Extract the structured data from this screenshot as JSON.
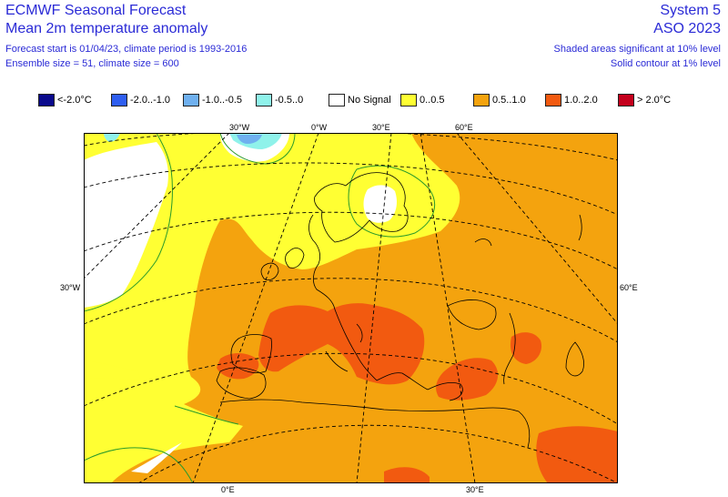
{
  "header": {
    "title_left": "ECMWF Seasonal Forecast",
    "subtitle_left": "Mean 2m temperature anomaly",
    "info1_left": "Forecast start is 01/04/23, climate period is 1993-2016",
    "info2_left": "Ensemble size = 51, climate size = 600",
    "title_right": "System 5",
    "subtitle_right": "ASO 2023",
    "info1_right": "Shaded areas significant at 10% level",
    "info2_right": "Solid contour at 1% level"
  },
  "legend": [
    {
      "label": "<-2.0°C",
      "color": "#0a0a8c"
    },
    {
      "label": "-2.0..-1.0",
      "color": "#2e5ef0"
    },
    {
      "label": "-1.0..-0.5",
      "color": "#6fb0ef"
    },
    {
      "label": "-0.5..0",
      "color": "#8ff2ea"
    },
    {
      "label": "No Signal",
      "color": "#ffffff"
    },
    {
      "label": "0..0.5",
      "color": "#ffff33"
    },
    {
      "label": "0.5..1.0",
      "color": "#f4a30e"
    },
    {
      "label": "1.0..2.0",
      "color": "#f25a10"
    },
    {
      "label": "> 2.0°C",
      "color": "#c4001c"
    }
  ],
  "map_labels": {
    "top_30w": "30°W",
    "top_0w": "0°W",
    "top_30e": "30°E",
    "top_60e": "60°E",
    "left_30w": "30°W",
    "right_60e": "60°E",
    "bottom_0e": "0°E",
    "bottom_30e": "30°E"
  },
  "colors": {
    "no_signal": "#ffffff",
    "light_cyan": "#8ff2ea",
    "light_blue": "#6fb0ef",
    "yellow": "#ffff33",
    "orange": "#f4a30e",
    "red_orange": "#f25a10",
    "coast": "#000000",
    "grid": "#000000",
    "sig_contour": "#2a9a2a"
  }
}
